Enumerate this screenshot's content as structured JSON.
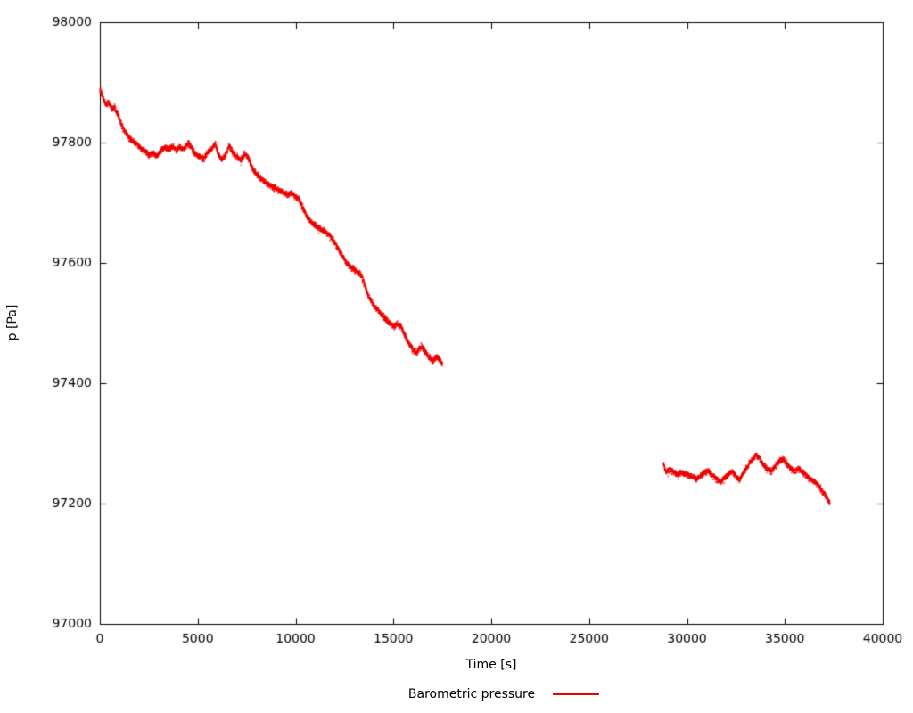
{
  "chart_data": {
    "type": "scatter",
    "title": "",
    "xlabel": "Time [s]",
    "ylabel": "p [Pa]",
    "xlim": [
      0,
      40000
    ],
    "ylim": [
      97000,
      98000
    ],
    "xticks": [
      0,
      5000,
      10000,
      15000,
      20000,
      25000,
      30000,
      35000,
      40000
    ],
    "yticks": [
      97000,
      97200,
      97400,
      97600,
      97800,
      98000
    ],
    "grid": false,
    "legend_position": "bottom-center",
    "axis_color": "#000000",
    "background_color": "#ffffff",
    "series": [
      {
        "name": "Barometric pressure",
        "color": "#ee0000",
        "style": "dots",
        "noise_pa": 7,
        "outlier_noise_pa": 16,
        "sample_step_s": 10,
        "segments": [
          {
            "anchors": [
              [
                0,
                97888
              ],
              [
                150,
                97876
              ],
              [
                300,
                97862
              ],
              [
                450,
                97867
              ],
              [
                600,
                97857
              ],
              [
                750,
                97860
              ],
              [
                900,
                97848
              ],
              [
                1100,
                97830
              ],
              [
                1300,
                97817
              ],
              [
                1500,
                97808
              ],
              [
                1700,
                97801
              ],
              [
                1900,
                97797
              ],
              [
                2100,
                97790
              ],
              [
                2300,
                97786
              ],
              [
                2500,
                97780
              ],
              [
                2700,
                97782
              ],
              [
                2900,
                97778
              ],
              [
                3100,
                97786
              ],
              [
                3300,
                97792
              ],
              [
                3500,
                97789
              ],
              [
                3700,
                97794
              ],
              [
                3900,
                97788
              ],
              [
                4100,
                97792
              ],
              [
                4300,
                97789
              ],
              [
                4500,
                97799
              ],
              [
                4700,
                97791
              ],
              [
                4900,
                97780
              ],
              [
                5100,
                97777
              ],
              [
                5300,
                97772
              ],
              [
                5500,
                97784
              ],
              [
                5700,
                97789
              ],
              [
                5900,
                97799
              ],
              [
                6050,
                97781
              ],
              [
                6200,
                97772
              ],
              [
                6400,
                97778
              ],
              [
                6600,
                97794
              ],
              [
                6800,
                97784
              ],
              [
                7000,
                97777
              ],
              [
                7200,
                97771
              ],
              [
                7400,
                97781
              ],
              [
                7600,
                97774
              ],
              [
                7800,
                97756
              ],
              [
                8000,
                97748
              ],
              [
                8200,
                97742
              ],
              [
                8400,
                97737
              ],
              [
                8600,
                97730
              ],
              [
                8800,
                97727
              ],
              [
                9000,
                97723
              ],
              [
                9200,
                97720
              ],
              [
                9400,
                97717
              ],
              [
                9600,
                97713
              ],
              [
                9800,
                97716
              ],
              [
                10000,
                97711
              ],
              [
                10200,
                97704
              ],
              [
                10400,
                97690
              ],
              [
                10600,
                97676
              ],
              [
                10800,
                97668
              ],
              [
                11000,
                97662
              ],
              [
                11200,
                97658
              ],
              [
                11400,
                97654
              ],
              [
                11600,
                97649
              ],
              [
                11800,
                97644
              ],
              [
                12000,
                97634
              ],
              [
                12200,
                97622
              ],
              [
                12400,
                97611
              ],
              [
                12600,
                97600
              ],
              [
                12800,
                97594
              ],
              [
                13000,
                97589
              ],
              [
                13200,
                97584
              ],
              [
                13400,
                97577
              ],
              [
                13500,
                97568
              ],
              [
                13650,
                97551
              ],
              [
                13800,
                97540
              ],
              [
                14000,
                97529
              ],
              [
                14200,
                97522
              ],
              [
                14400,
                97514
              ],
              [
                14600,
                97507
              ],
              [
                14800,
                97500
              ],
              [
                15000,
                97494
              ],
              [
                15200,
                97499
              ],
              [
                15400,
                97494
              ],
              [
                15600,
                97479
              ],
              [
                15800,
                97464
              ],
              [
                16000,
                97457
              ],
              [
                16200,
                97451
              ],
              [
                16400,
                97461
              ],
              [
                16600,
                97454
              ],
              [
                16800,
                97444
              ],
              [
                17000,
                97437
              ],
              [
                17200,
                97445
              ],
              [
                17400,
                97438
              ],
              [
                17500,
                97432
              ]
            ]
          },
          {
            "anchors": [
              [
                28800,
                97268
              ],
              [
                28900,
                97252
              ],
              [
                29100,
                97256
              ],
              [
                29300,
                97253
              ],
              [
                29500,
                97248
              ],
              [
                29700,
                97252
              ],
              [
                29900,
                97250
              ],
              [
                30100,
                97247
              ],
              [
                30300,
                97244
              ],
              [
                30500,
                97240
              ],
              [
                30700,
                97246
              ],
              [
                30900,
                97252
              ],
              [
                31100,
                97254
              ],
              [
                31300,
                97247
              ],
              [
                31500,
                97240
              ],
              [
                31700,
                97236
              ],
              [
                31900,
                97241
              ],
              [
                32100,
                97248
              ],
              [
                32300,
                97254
              ],
              [
                32500,
                97245
              ],
              [
                32700,
                97240
              ],
              [
                32900,
                97252
              ],
              [
                33100,
                97262
              ],
              [
                33300,
                97272
              ],
              [
                33500,
                97280
              ],
              [
                33700,
                97276
              ],
              [
                33900,
                97264
              ],
              [
                34100,
                97257
              ],
              [
                34300,
                97254
              ],
              [
                34500,
                97262
              ],
              [
                34700,
                97270
              ],
              [
                34900,
                97274
              ],
              [
                35100,
                97266
              ],
              [
                35300,
                97258
              ],
              [
                35500,
                97254
              ],
              [
                35700,
                97258
              ],
              [
                35900,
                97252
              ],
              [
                36100,
                97246
              ],
              [
                36300,
                97240
              ],
              [
                36500,
                97237
              ],
              [
                36700,
                97231
              ],
              [
                36900,
                97222
              ],
              [
                37100,
                97212
              ],
              [
                37300,
                97200
              ]
            ]
          }
        ]
      }
    ]
  }
}
